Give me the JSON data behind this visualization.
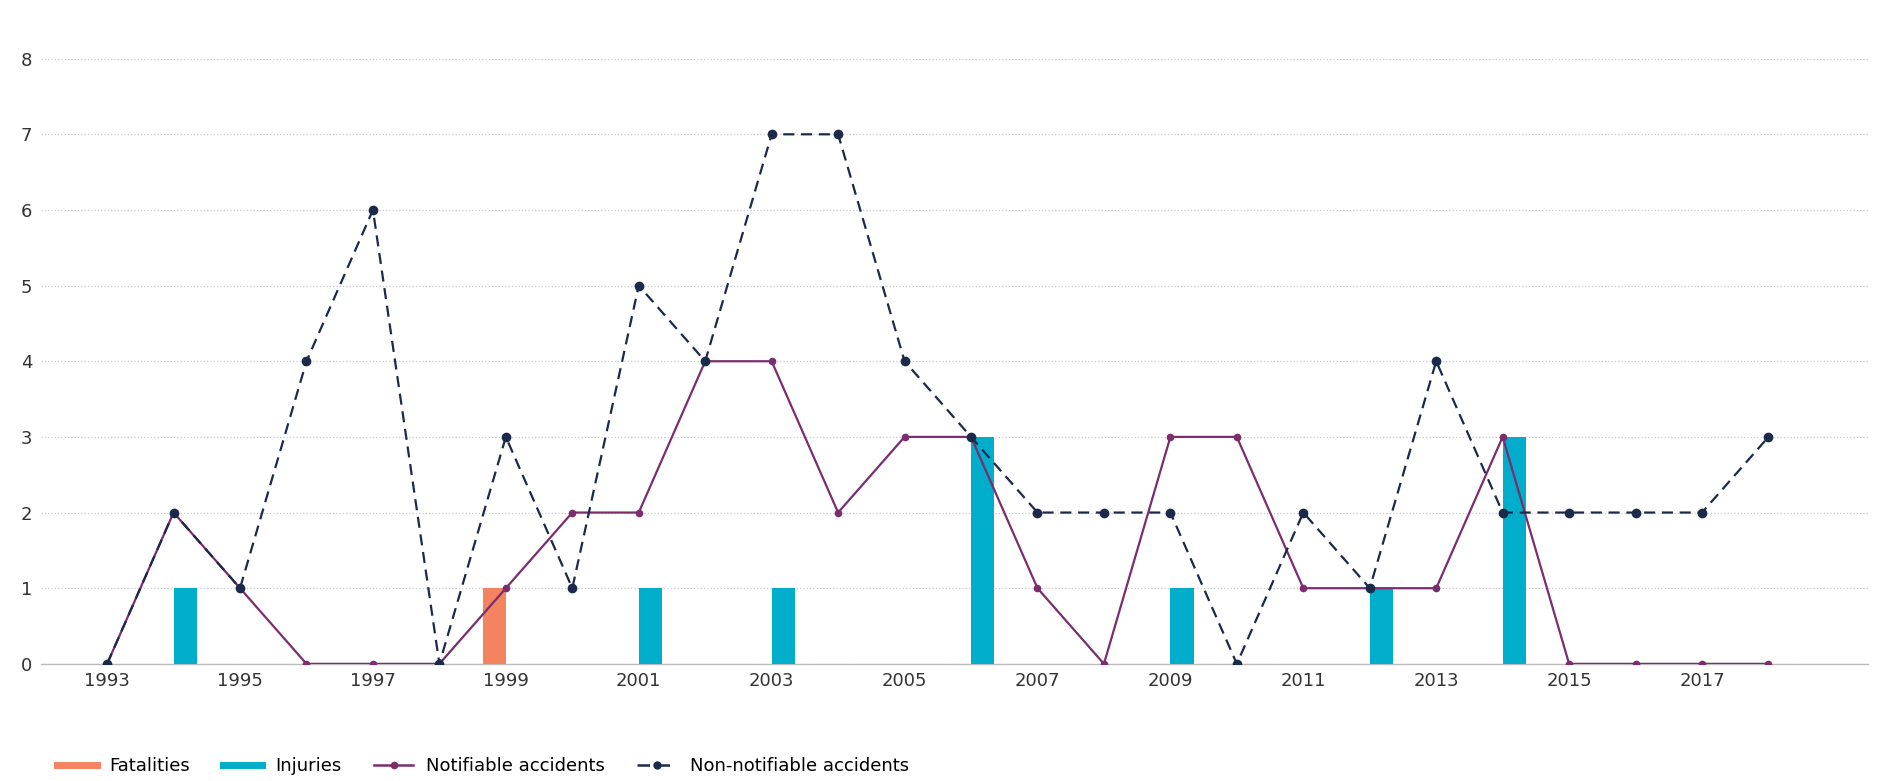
{
  "years": [
    1993,
    1994,
    1995,
    1996,
    1997,
    1998,
    1999,
    2000,
    2001,
    2002,
    2003,
    2004,
    2005,
    2006,
    2007,
    2008,
    2009,
    2010,
    2011,
    2012,
    2013,
    2014,
    2015,
    2016,
    2017,
    2018
  ],
  "fatalities": [
    0,
    0,
    0,
    0,
    0,
    0,
    1,
    0,
    0,
    0,
    0,
    0,
    0,
    0,
    0,
    0,
    0,
    0,
    0,
    0,
    0,
    0,
    0,
    0,
    0,
    0
  ],
  "injuries": [
    0,
    1,
    0,
    0,
    0,
    0,
    0,
    0,
    1,
    0,
    1,
    0,
    0,
    3,
    0,
    0,
    1,
    0,
    0,
    1,
    0,
    3,
    0,
    0,
    0,
    0
  ],
  "notifiable": [
    0,
    2,
    1,
    0,
    0,
    0,
    1,
    2,
    2,
    4,
    4,
    2,
    3,
    3,
    1,
    0,
    3,
    3,
    1,
    1,
    1,
    3,
    0,
    0,
    0,
    0
  ],
  "non_notifiable": [
    0,
    2,
    1,
    4,
    6,
    0,
    3,
    1,
    5,
    4,
    7,
    7,
    4,
    3,
    2,
    2,
    2,
    0,
    2,
    1,
    4,
    2,
    2,
    2,
    2,
    3
  ],
  "bar_width": 0.35,
  "fatalities_color": "#F4845F",
  "injuries_color": "#00AECC",
  "notifiable_color": "#7B2D6E",
  "non_notifiable_color": "#1B2A4A",
  "background_color": "#FFFFFF",
  "grid_color": "#C8C8C8",
  "ylim": [
    0,
    8.5
  ],
  "ylim_display": [
    0,
    8
  ],
  "yticks": [
    0,
    1,
    2,
    3,
    4,
    5,
    6,
    7,
    8
  ],
  "xticks": [
    1993,
    1995,
    1997,
    1999,
    2001,
    2003,
    2005,
    2007,
    2009,
    2011,
    2013,
    2015,
    2017
  ],
  "xlim": [
    1992.0,
    2019.5
  ],
  "legend_labels": [
    "Fatalities",
    "Injuries",
    "Notifiable accidents",
    "Non-notifiable accidents"
  ]
}
